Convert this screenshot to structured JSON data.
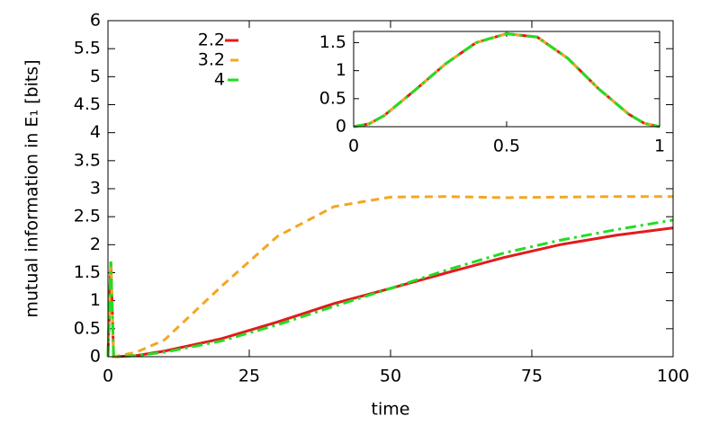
{
  "chart_data": [
    {
      "type": "line",
      "xlabel": "time",
      "ylabel": "mutual information in E₁ [bits]",
      "x": [
        0,
        0.5,
        1,
        5,
        10,
        20,
        30,
        40,
        50,
        60,
        70,
        80,
        90,
        100
      ],
      "xlim": [
        0,
        100
      ],
      "xticks": [
        0,
        25,
        50,
        75,
        100
      ],
      "ylim": [
        0,
        6
      ],
      "yticks": [
        0,
        0.5,
        1,
        1.5,
        2,
        2.5,
        3,
        3.5,
        4,
        4.5,
        5,
        5.5,
        6
      ],
      "legend": "top-left",
      "series": [
        {
          "name": "2.2",
          "color": "#e41a1c",
          "dash": "solid",
          "values": [
            0,
            1.7,
            0,
            0.02,
            0.1,
            0.32,
            0.62,
            0.95,
            1.22,
            1.5,
            1.77,
            2.0,
            2.17,
            2.3
          ]
        },
        {
          "name": "3.2",
          "color": "#f5a623",
          "dash": "dashed",
          "values": [
            0,
            1.7,
            0,
            0.08,
            0.3,
            1.25,
            2.15,
            2.68,
            2.85,
            2.86,
            2.84,
            2.85,
            2.86,
            2.86
          ]
        },
        {
          "name": "4",
          "color": "#22dd22",
          "dash": "dashdot",
          "values": [
            0,
            1.7,
            0,
            0.02,
            0.08,
            0.28,
            0.57,
            0.9,
            1.22,
            1.55,
            1.85,
            2.08,
            2.27,
            2.44
          ]
        }
      ]
    },
    {
      "type": "line",
      "x": [
        0,
        0.05,
        0.1,
        0.2,
        0.3,
        0.4,
        0.5,
        0.6,
        0.7,
        0.8,
        0.9,
        0.95,
        1
      ],
      "xlim": [
        0,
        1
      ],
      "xticks": [
        0,
        0.5,
        1
      ],
      "ylim": [
        0,
        1.7
      ],
      "yticks": [
        0,
        0.5,
        1,
        1.5
      ],
      "series": [
        {
          "color": "#e41a1c",
          "dash": "solid",
          "values": [
            0,
            0.05,
            0.2,
            0.65,
            1.12,
            1.5,
            1.66,
            1.6,
            1.22,
            0.68,
            0.22,
            0.06,
            0
          ]
        },
        {
          "color": "#f5a623",
          "dash": "dashed",
          "values": [
            0,
            0.05,
            0.2,
            0.65,
            1.12,
            1.5,
            1.66,
            1.6,
            1.22,
            0.68,
            0.22,
            0.06,
            0
          ]
        },
        {
          "color": "#22dd22",
          "dash": "dashdot",
          "values": [
            0,
            0.05,
            0.2,
            0.65,
            1.12,
            1.5,
            1.66,
            1.6,
            1.22,
            0.68,
            0.22,
            0.06,
            0
          ]
        }
      ]
    }
  ]
}
